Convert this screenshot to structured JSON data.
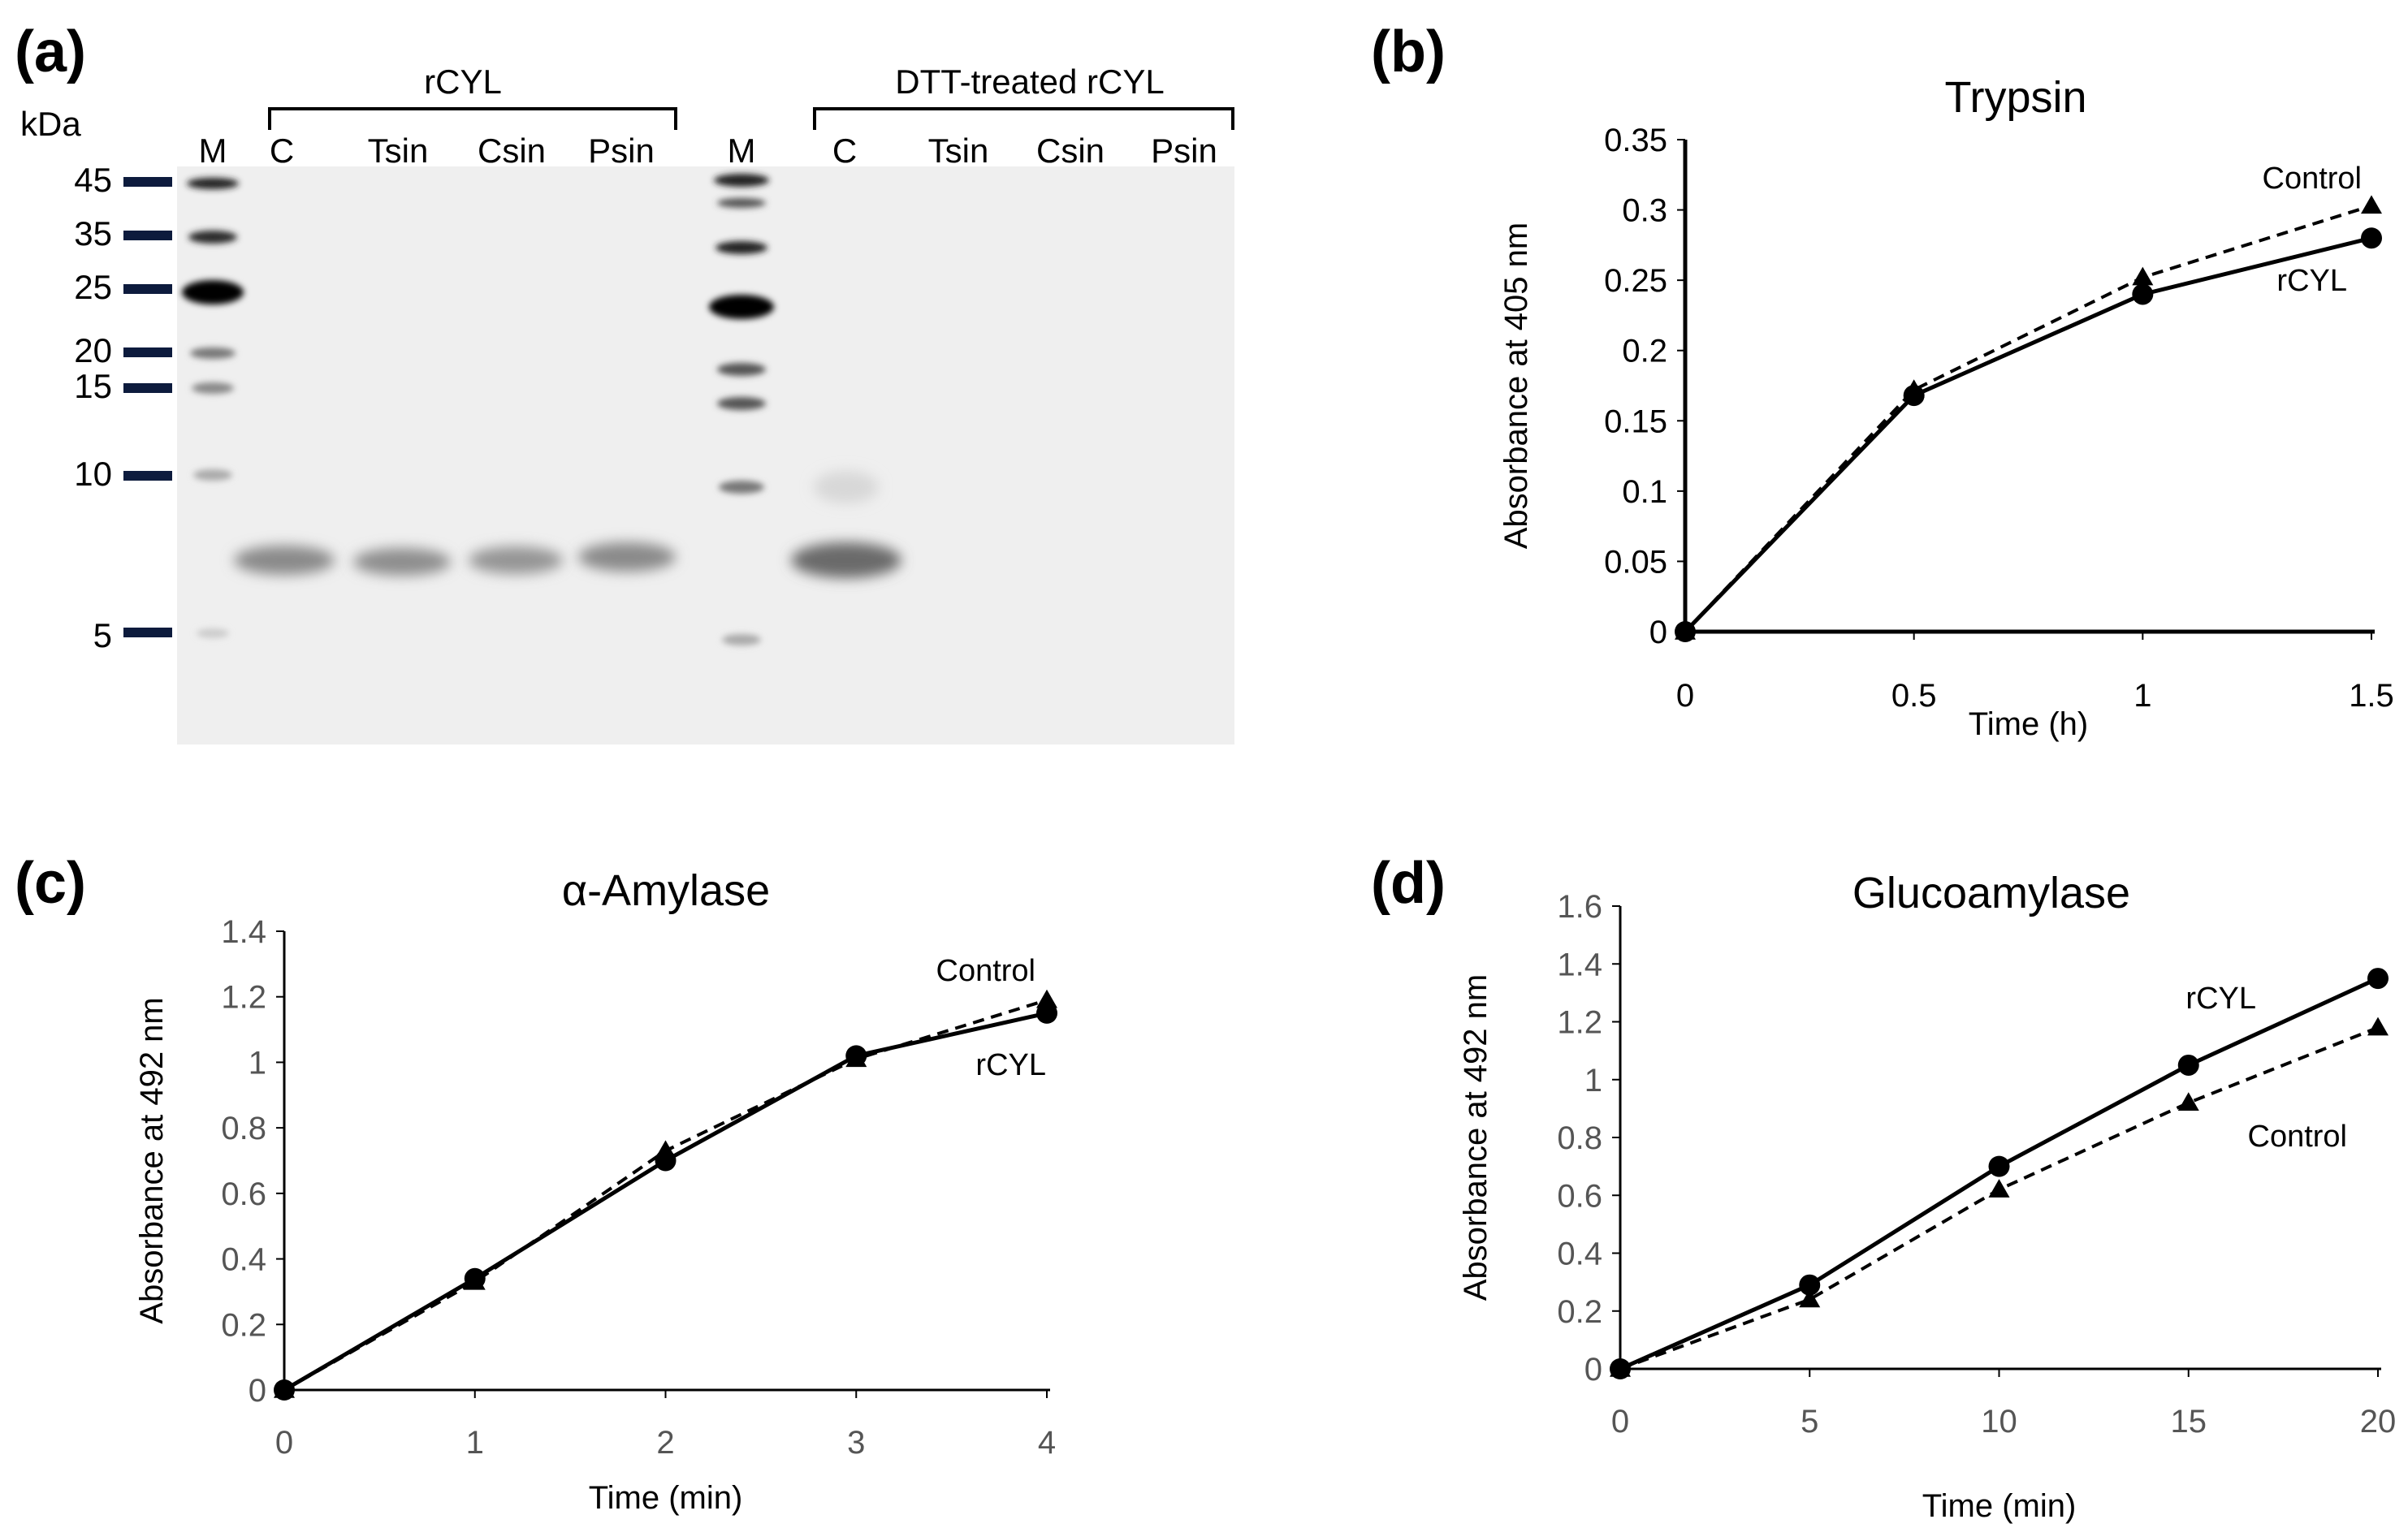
{
  "gel": {
    "letter": "(a)",
    "unit": "kDa",
    "markers": [
      "45",
      "35",
      "25",
      "20",
      "15",
      "10",
      "5"
    ],
    "group_left": "rCYL",
    "group_right": "DTT-treated rCYL",
    "lanes": [
      "M",
      "C",
      "Tsin",
      "Csin",
      "Psin",
      "M",
      "C",
      "Tsin",
      "Csin",
      "Psin"
    ]
  },
  "chart_data": [
    {
      "id": "b",
      "letter": "(b)",
      "type": "line",
      "title": "Trypsin",
      "xlabel": "Time (h)",
      "ylabel": "Absorbance at 405 nm",
      "x": [
        0,
        0.5,
        1,
        1.5
      ],
      "xticks": [
        "0",
        "0.5",
        "1",
        "1.5"
      ],
      "yticks": [
        "0",
        "0.05",
        "0.1",
        "0.15",
        "0.2",
        "0.25",
        "0.3",
        "0.35"
      ],
      "xlim": [
        0,
        1.5
      ],
      "ylim": [
        0,
        0.35
      ],
      "series": [
        {
          "name": "Control",
          "marker": "triangle",
          "dash": true,
          "values": [
            0,
            0.172,
            0.252,
            0.303
          ]
        },
        {
          "name": "rCYL",
          "marker": "circle",
          "dash": false,
          "values": [
            0,
            0.168,
            0.24,
            0.28
          ]
        }
      ]
    },
    {
      "id": "c",
      "letter": "(c)",
      "type": "line",
      "title": "α-Amylase",
      "xlabel": "Time (min)",
      "ylabel": "Absorbance at 492 nm",
      "x": [
        0,
        1,
        2,
        3,
        4
      ],
      "xticks": [
        "0",
        "1",
        "2",
        "3",
        "4"
      ],
      "yticks": [
        "0",
        "0.2",
        "0.4",
        "0.6",
        "0.8",
        "1",
        "1.2",
        "1.4"
      ],
      "xlim": [
        0,
        4
      ],
      "ylim": [
        0,
        1.4
      ],
      "series": [
        {
          "name": "Control",
          "marker": "triangle",
          "dash": true,
          "values": [
            0,
            0.33,
            0.73,
            1.01,
            1.19
          ]
        },
        {
          "name": "rCYL",
          "marker": "circle",
          "dash": false,
          "values": [
            0,
            0.34,
            0.7,
            1.02,
            1.15
          ]
        }
      ]
    },
    {
      "id": "d",
      "letter": "(d)",
      "type": "line",
      "title": "Glucoamylase",
      "xlabel": "Time (min)",
      "ylabel": "Absorbance at 492 nm",
      "x": [
        0,
        5,
        10,
        15,
        20
      ],
      "xticks": [
        "0",
        "5",
        "10",
        "15",
        "20"
      ],
      "yticks": [
        "0",
        "0.2",
        "0.4",
        "0.6",
        "0.8",
        "1",
        "1.2",
        "1.4",
        "1.6"
      ],
      "xlim": [
        0,
        20
      ],
      "ylim": [
        0,
        1.6
      ],
      "series": [
        {
          "name": "Control",
          "marker": "triangle",
          "dash": true,
          "values": [
            0,
            0.24,
            0.62,
            0.92,
            1.18
          ]
        },
        {
          "name": "rCYL",
          "marker": "circle",
          "dash": false,
          "values": [
            0,
            0.29,
            0.7,
            1.05,
            1.35
          ]
        }
      ]
    }
  ]
}
